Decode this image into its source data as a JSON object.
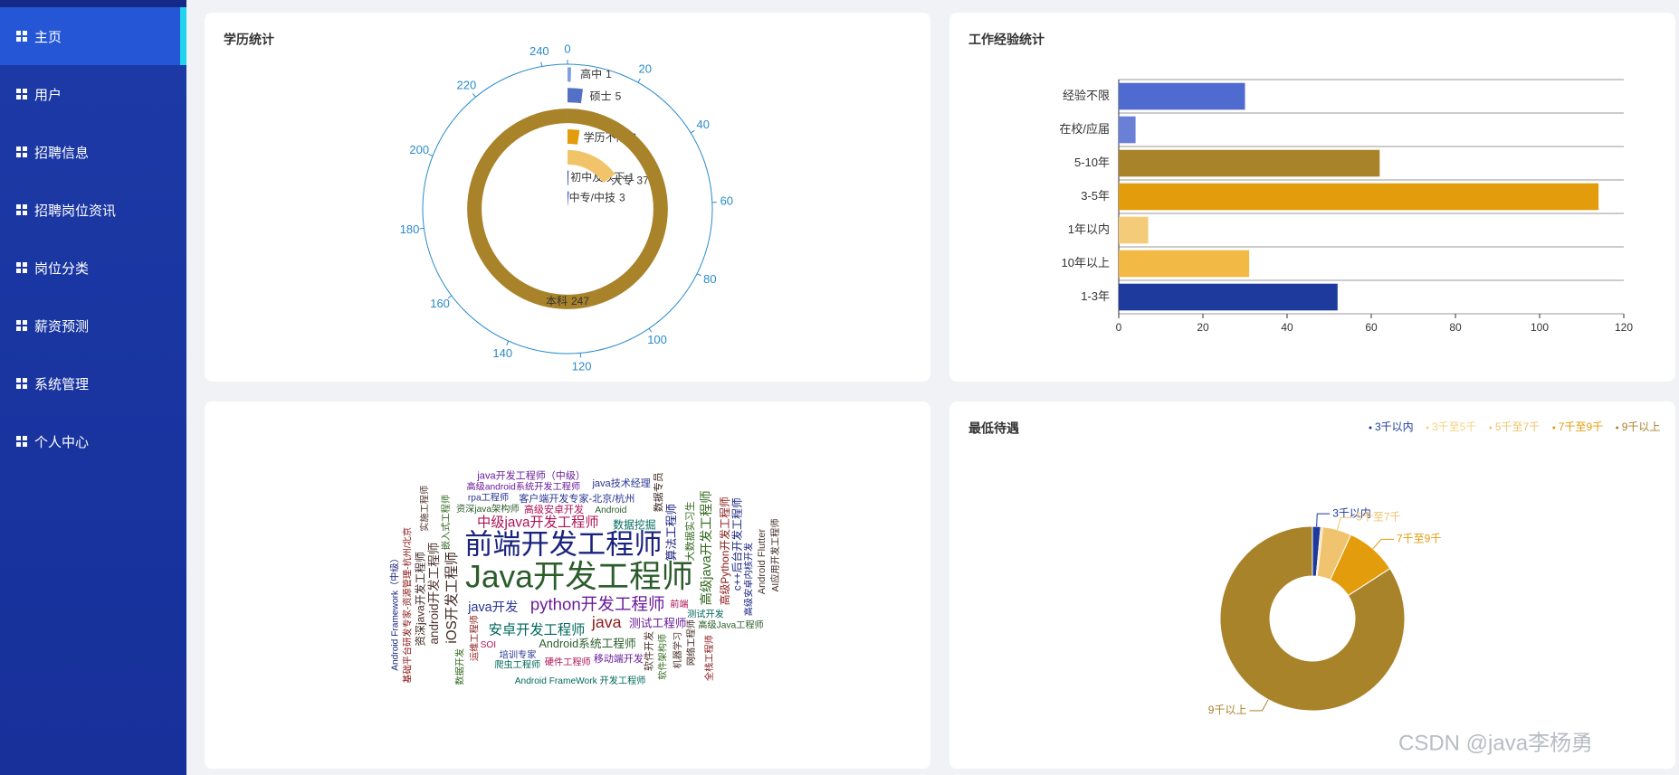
{
  "sidebar": {
    "menu": [
      "主页",
      "用户",
      "招聘信息",
      "招聘岗位资讯",
      "岗位分类",
      "薪资预测",
      "系统管理",
      "个人中心"
    ]
  },
  "chart_data": [
    {
      "type": "polar",
      "title": "学历统计",
      "categories": [
        "中专/中技",
        "初中及以下",
        "大专",
        "学历不限",
        "本科",
        "硕士",
        "高中"
      ],
      "values": [
        3,
        1,
        37,
        6,
        247,
        5,
        1
      ],
      "colors": [
        "#3b5bbf",
        "#1e3a9c",
        "#f2c46a",
        "#e39c0c",
        "#a8832a",
        "#5470c6",
        "#7fa0e6"
      ],
      "anglelim": [
        0,
        247
      ],
      "angleticks": [
        0,
        20,
        40,
        60,
        80,
        100,
        120,
        140,
        160,
        180,
        200,
        220,
        240
      ]
    },
    {
      "type": "bar",
      "title": "工作经验统计",
      "categories": [
        "经验不限",
        "在校/应届",
        "5-10年",
        "3-5年",
        "1年以内",
        "10年以上",
        "1-3年"
      ],
      "values": [
        30,
        4,
        62,
        114,
        7,
        31,
        52
      ],
      "colors": [
        "#4f6bd0",
        "#6a7fd6",
        "#a8832a",
        "#e39c0c",
        "#f3cb79",
        "#f2b944",
        "#1e3a9c"
      ],
      "xlim": [
        0,
        120
      ],
      "xticks": [
        0,
        20,
        40,
        60,
        80,
        100,
        120
      ],
      "grid": true
    },
    {
      "type": "wordcloud",
      "words": [
        "Java开发工程师",
        "前端开发工程师",
        "python开发工程师",
        "java",
        "安卓开发工程师",
        "iOS开发工程师",
        "中级java开发工程师",
        "高级java开发工程师",
        "java开发",
        "android开发工程师",
        "Android系统工程师",
        "算法工程师",
        "测试工程师",
        "高级Python开发工程师",
        "数据挖掘",
        "资深java开发工程师",
        "高级安卓开发",
        "大数据实习生",
        "客户端开发专家-北京/杭州",
        "软件开发",
        "Android",
        "c++后台开发工程师",
        "移动端开发",
        "运维工程师",
        "测试开发",
        "网络工程师",
        "硬件工程师",
        "软件架构师",
        "培训专家",
        "机器学习",
        "资深java架构师",
        "高级安卓内核开发",
        "高级android系统开发工程师",
        "基础平台研发专家-资源管理-杭州/北京",
        "Android FrameWork 开发工程师",
        "数据专员",
        "前端",
        "嵌入式工程师",
        "java技术经理",
        "Android Flutter",
        "高级Java工程师",
        "Android Framework（中级）",
        "java开发工程师（中级）",
        "全栈工程师",
        "爬虫工程师",
        "AI应用开发工程师",
        "SOI",
        "数据开发",
        "rpa工程师",
        "实施工程师"
      ],
      "values": [
        70,
        60,
        30,
        28,
        22,
        22,
        22,
        20,
        20,
        18,
        16,
        16,
        16,
        14,
        14,
        14,
        12,
        12,
        12,
        12,
        10,
        14,
        12,
        10,
        10,
        10,
        10,
        10,
        10,
        10,
        10,
        10,
        10,
        10,
        10,
        12,
        10,
        10,
        12,
        12,
        10,
        10,
        12,
        10,
        10,
        10,
        10,
        10,
        10,
        10
      ],
      "palette": [
        "#2b5d2b",
        "#1a237e",
        "#6a1b9a",
        "#8b1a1a",
        "#00695c",
        "#3e2723",
        "#ad1457",
        "#33691e",
        "#283593",
        "#4e342e"
      ]
    },
    {
      "type": "pie",
      "title": "最低待遇",
      "categories": [
        "3千以内",
        "3千至5千",
        "5千至7千",
        "7千至9千",
        "9千以上"
      ],
      "values": [
        4,
        1,
        14,
        25,
        233
      ],
      "colors": [
        "#1e3a9c",
        "#f5d27e",
        "#f0c46e",
        "#e39c0c",
        "#a8832a"
      ],
      "legend": "top-right",
      "donut": true
    }
  ],
  "watermark": "CSDN @java李杨勇"
}
